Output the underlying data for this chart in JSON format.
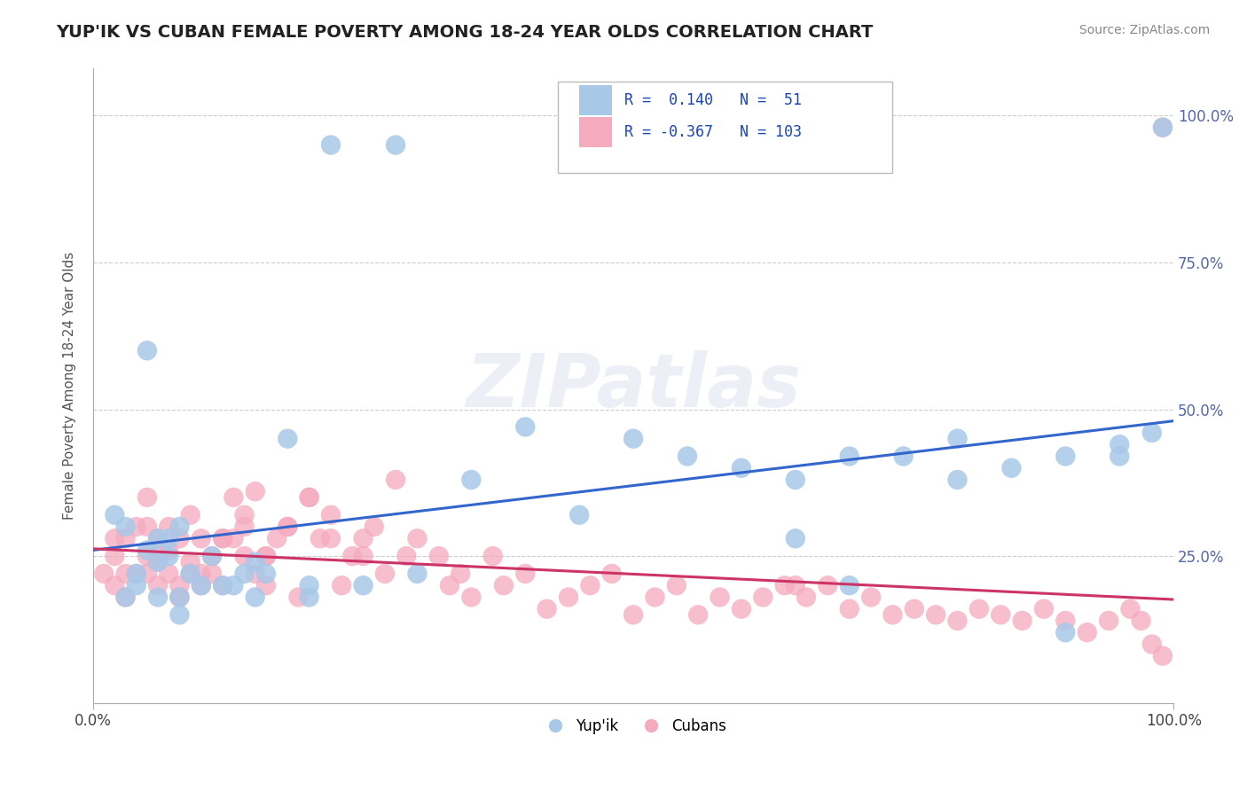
{
  "title": "YUP'IK VS CUBAN FEMALE POVERTY AMONG 18-24 YEAR OLDS CORRELATION CHART",
  "source": "Source: ZipAtlas.com",
  "ylabel": "Female Poverty Among 18-24 Year Olds",
  "xlim": [
    0.0,
    1.0
  ],
  "ylim": [
    0.0,
    1.08
  ],
  "ytick_positions": [
    0.25,
    0.5,
    0.75,
    1.0
  ],
  "ytick_labels": [
    "25.0%",
    "50.0%",
    "75.0%",
    "100.0%"
  ],
  "legend_text1": "R =  0.140   N =  51",
  "legend_text2": "R = -0.367   N = 103",
  "yupik_color": "#a8c8e8",
  "cuban_color": "#f5aabe",
  "yupik_line_color": "#3366cc",
  "cuban_line_color": "#cc3366",
  "watermark": "ZIPatlas",
  "background_color": "#ffffff",
  "grid_color": "#cccccc",
  "yupik_x": [
    0.02,
    0.22,
    0.28,
    0.05,
    0.07,
    0.03,
    0.04,
    0.06,
    0.08,
    0.09,
    0.1,
    0.11,
    0.12,
    0.14,
    0.15,
    0.03,
    0.05,
    0.06,
    0.07,
    0.08,
    0.13,
    0.16,
    0.18,
    0.2,
    0.25,
    0.3,
    0.35,
    0.4,
    0.45,
    0.5,
    0.55,
    0.6,
    0.65,
    0.7,
    0.75,
    0.8,
    0.85,
    0.9,
    0.95,
    0.98,
    0.04,
    0.06,
    0.08,
    0.15,
    0.2,
    0.65,
    0.7,
    0.8,
    0.9,
    0.95,
    0.99
  ],
  "yupik_y": [
    0.32,
    0.95,
    0.95,
    0.6,
    0.25,
    0.18,
    0.22,
    0.28,
    0.3,
    0.22,
    0.2,
    0.25,
    0.2,
    0.22,
    0.18,
    0.3,
    0.26,
    0.24,
    0.28,
    0.18,
    0.2,
    0.22,
    0.45,
    0.2,
    0.2,
    0.22,
    0.38,
    0.47,
    0.32,
    0.45,
    0.42,
    0.4,
    0.38,
    0.42,
    0.42,
    0.38,
    0.4,
    0.42,
    0.44,
    0.46,
    0.2,
    0.18,
    0.15,
    0.24,
    0.18,
    0.28,
    0.2,
    0.45,
    0.12,
    0.42,
    0.98
  ],
  "cuban_x": [
    0.01,
    0.02,
    0.02,
    0.03,
    0.03,
    0.04,
    0.04,
    0.05,
    0.05,
    0.05,
    0.06,
    0.06,
    0.06,
    0.07,
    0.07,
    0.07,
    0.08,
    0.08,
    0.08,
    0.09,
    0.09,
    0.09,
    0.1,
    0.1,
    0.11,
    0.11,
    0.12,
    0.12,
    0.13,
    0.13,
    0.14,
    0.14,
    0.15,
    0.15,
    0.16,
    0.16,
    0.17,
    0.18,
    0.19,
    0.2,
    0.21,
    0.22,
    0.23,
    0.24,
    0.25,
    0.26,
    0.27,
    0.28,
    0.29,
    0.3,
    0.32,
    0.33,
    0.34,
    0.35,
    0.37,
    0.38,
    0.4,
    0.42,
    0.44,
    0.46,
    0.48,
    0.5,
    0.52,
    0.54,
    0.56,
    0.58,
    0.6,
    0.62,
    0.64,
    0.65,
    0.66,
    0.68,
    0.7,
    0.72,
    0.74,
    0.76,
    0.78,
    0.8,
    0.82,
    0.84,
    0.86,
    0.88,
    0.9,
    0.92,
    0.94,
    0.96,
    0.97,
    0.98,
    0.99,
    0.99,
    0.02,
    0.03,
    0.05,
    0.06,
    0.08,
    0.1,
    0.12,
    0.14,
    0.16,
    0.18,
    0.2,
    0.22,
    0.25
  ],
  "cuban_y": [
    0.22,
    0.25,
    0.2,
    0.18,
    0.28,
    0.22,
    0.3,
    0.25,
    0.35,
    0.22,
    0.2,
    0.28,
    0.24,
    0.3,
    0.22,
    0.26,
    0.18,
    0.28,
    0.2,
    0.24,
    0.32,
    0.22,
    0.28,
    0.2,
    0.22,
    0.25,
    0.28,
    0.2,
    0.35,
    0.28,
    0.3,
    0.25,
    0.36,
    0.22,
    0.25,
    0.2,
    0.28,
    0.3,
    0.18,
    0.35,
    0.28,
    0.32,
    0.2,
    0.25,
    0.28,
    0.3,
    0.22,
    0.38,
    0.25,
    0.28,
    0.25,
    0.2,
    0.22,
    0.18,
    0.25,
    0.2,
    0.22,
    0.16,
    0.18,
    0.2,
    0.22,
    0.15,
    0.18,
    0.2,
    0.15,
    0.18,
    0.16,
    0.18,
    0.2,
    0.2,
    0.18,
    0.2,
    0.16,
    0.18,
    0.15,
    0.16,
    0.15,
    0.14,
    0.16,
    0.15,
    0.14,
    0.16,
    0.14,
    0.12,
    0.14,
    0.16,
    0.14,
    0.1,
    0.08,
    0.98,
    0.28,
    0.22,
    0.3,
    0.25,
    0.18,
    0.22,
    0.28,
    0.32,
    0.25,
    0.3,
    0.35,
    0.28,
    0.25
  ]
}
